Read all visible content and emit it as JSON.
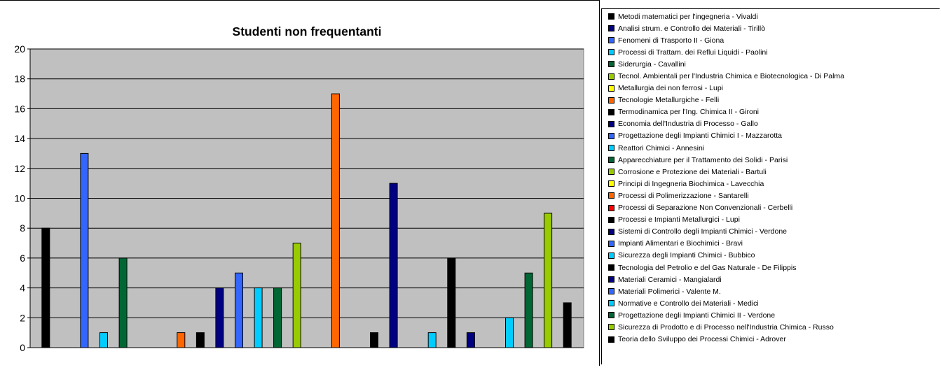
{
  "colors": [
    "#000000",
    "#000080",
    "#3366FF",
    "#00CCFF",
    "#006633",
    "#99CC00",
    "#FFFF00",
    "#FF6600",
    "#FF0000"
  ],
  "chart_data": {
    "type": "bar",
    "title": "Studenti non frequentanti",
    "xlabel": "",
    "ylabel": "",
    "ylim": [
      0,
      20
    ],
    "yticks": [
      "0",
      "2",
      "4",
      "6",
      "8",
      "10",
      "12",
      "14",
      "16",
      "18",
      "20"
    ],
    "grid": true,
    "legend_position": "right",
    "series": [
      {
        "name": "Metodi matematici per l'ingegneria - Vivaldi",
        "value": 8,
        "color": "#000000"
      },
      {
        "name": "Analisi strum. e Controllo dei Materiali - Tirillò",
        "value": 0,
        "color": "#000080"
      },
      {
        "name": "Fenomeni di Trasporto II - Giona",
        "value": 13,
        "color": "#3366FF"
      },
      {
        "name": "Processi di Trattam. dei Reflui Liquidi - Paolini",
        "value": 1,
        "color": "#00CCFF"
      },
      {
        "name": "Siderurgia - Cavallini",
        "value": 6,
        "color": "#006633"
      },
      {
        "name": "Tecnol. Ambientali per l'Industria Chimica e Biotecnologica - Di Palma",
        "value": 0,
        "color": "#99CC00"
      },
      {
        "name": "Metallurgia dei non ferrosi - Lupi",
        "value": 0,
        "color": "#FFFF00"
      },
      {
        "name": "Tecnologie Metallurgiche - Felli",
        "value": 1,
        "color": "#FF6600"
      },
      {
        "name": "Termodinamica per l'Ing. Chimica II - Gironi",
        "value": 1,
        "color": "#000000"
      },
      {
        "name": "Economia dell'Industria di Processo - Gallo",
        "value": 4,
        "color": "#000080"
      },
      {
        "name": "Progettazione degli Impianti Chimici I - Mazzarotta",
        "value": 5,
        "color": "#3366FF"
      },
      {
        "name": "Reattori Chimici - Annesini",
        "value": 4,
        "color": "#00CCFF"
      },
      {
        "name": "Apparecchiature per il Trattamento dei Solidi - Parisi",
        "value": 4,
        "color": "#006633"
      },
      {
        "name": "Corrosione e Protezione dei Materiali - Bartuli",
        "value": 7,
        "color": "#99CC00"
      },
      {
        "name": "Principi di Ingegneria Biochimica - Lavecchia",
        "value": 0,
        "color": "#FFFF00"
      },
      {
        "name": "Processi di Polimerizzazione - Santarelli",
        "value": 17,
        "color": "#FF6600"
      },
      {
        "name": "Processi di Separazione Non Convenzionali - Cerbelli",
        "value": 0,
        "color": "#FF0000"
      },
      {
        "name": "Processi e Impianti Metallurgici - Lupi",
        "value": 1,
        "color": "#000000"
      },
      {
        "name": "Sistemi di Controllo degli Impianti Chimici - Verdone",
        "value": 11,
        "color": "#000080"
      },
      {
        "name": "Impianti Alimentari e Biochimici - Bravi",
        "value": 0,
        "color": "#3366FF"
      },
      {
        "name": "Sicurezza degli Impianti Chimici - Bubbico",
        "value": 1,
        "color": "#00CCFF"
      },
      {
        "name": "Tecnologia del Petrolio e del Gas Naturale - De Filippis",
        "value": 6,
        "color": "#000000"
      },
      {
        "name": "Materiali Ceramici - Mangialardi",
        "value": 1,
        "color": "#000080"
      },
      {
        "name": "Materiali Polimerici - Valente M.",
        "value": 0,
        "color": "#3366FF"
      },
      {
        "name": "Normative e Controllo dei Materiali - Medici",
        "value": 2,
        "color": "#00CCFF"
      },
      {
        "name": "Progettazione degli Impianti Chimici II - Verdone",
        "value": 5,
        "color": "#006633"
      },
      {
        "name": "Sicurezza di Prodotto e di Processo nell'Industria Chimica - Russo",
        "value": 9,
        "color": "#99CC00"
      },
      {
        "name": "Teoria dello Sviluppo dei Processi Chimici - Adrover",
        "value": 3,
        "color": "#000000"
      }
    ]
  }
}
